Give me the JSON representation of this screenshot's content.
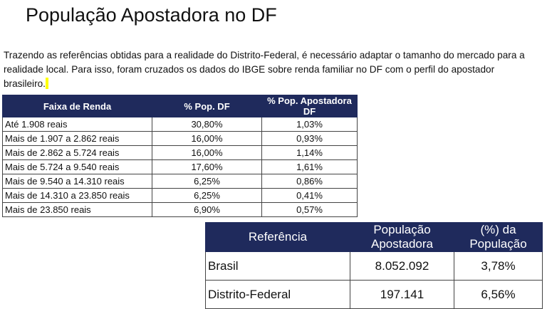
{
  "title": "População Apostadora no DF",
  "paragraph": "Trazendo as referências obtidas para a realidade do Distrito-Federal, é necessário adaptar o tamanho do mercado para a realidade local. Para isso, foram cruzados os dados do IBGE sobre renda familiar no DF com o perfil do apostador brasileiro.",
  "income_table": {
    "headers": [
      "Faixa de Renda",
      "% Pop. DF",
      "% Pop. Apostadora DF"
    ],
    "rows": [
      [
        "Até 1.908 reais",
        "30,80%",
        "1,03%"
      ],
      [
        "Mais de 1.907 a 2.862 reais",
        "16,00%",
        "0,93%"
      ],
      [
        "Mais de 2.862 a 5.724 reais",
        "16,00%",
        "1,14%"
      ],
      [
        "Mais de 5.724 a 9.540 reais",
        "17,60%",
        "1,61%"
      ],
      [
        "Mais de 9.540 a 14.310 reais",
        "6,25%",
        "0,86%"
      ],
      [
        "Mais de 14.310 a 23.850 reais",
        "6,25%",
        "0,41%"
      ],
      [
        "Mais de 23.850 reais",
        "6,90%",
        "0,57%"
      ]
    ]
  },
  "reference_table": {
    "headers": [
      "Referência",
      "População Apostadora",
      "(%) da População"
    ],
    "rows": [
      [
        "Brasil",
        "8.052.092",
        "3,78%"
      ],
      [
        "Distrito-Federal",
        "197.141",
        "6,56%"
      ]
    ]
  },
  "colors": {
    "header_bg": "#1f2a5c",
    "highlight": "#ffff00"
  }
}
